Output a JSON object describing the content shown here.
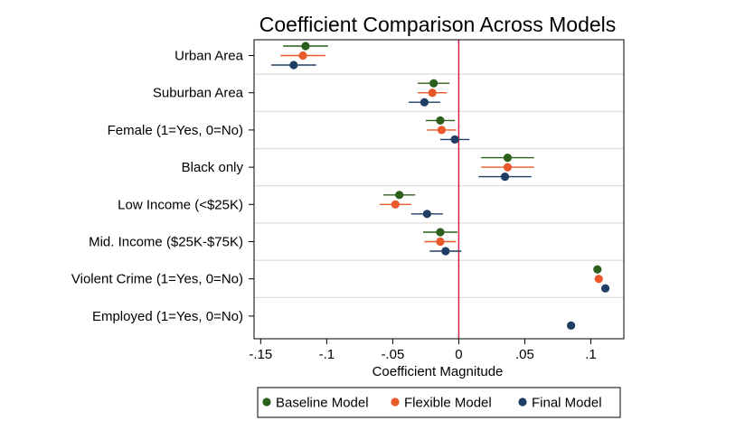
{
  "chart_data": {
    "type": "scatter",
    "title": "Coefficient Comparison Across Models",
    "xlabel": "Coefficient Magnitude",
    "ylabel": "",
    "xlim": [
      -0.155,
      0.125
    ],
    "xticks": [
      {
        "value": -0.15,
        "label": "-.15"
      },
      {
        "value": -0.1,
        "label": "-.1"
      },
      {
        "value": -0.05,
        "label": "-.05"
      },
      {
        "value": 0,
        "label": "0"
      },
      {
        "value": 0.05,
        "label": ".05"
      },
      {
        "value": 0.1,
        "label": ".1"
      }
    ],
    "reference_line": {
      "x": 0,
      "color": "#d6204b"
    },
    "grid": true,
    "legend_position": "bottom",
    "categories": [
      "Urban Area",
      "Suburban Area",
      "Female (1=Yes, 0=No)",
      "Black only",
      "Low Income (<$25K)",
      "Mid. Income ($25K-$75K)",
      "Violent Crime (1=Yes, 0=No)",
      "Employed (1=Yes, 0=No)"
    ],
    "series": [
      {
        "name": "Baseline Model",
        "color": "#2c5f1b",
        "values": [
          -0.116,
          -0.019,
          -0.014,
          0.037,
          -0.045,
          -0.014,
          0.105,
          null
        ],
        "ci_low": [
          -0.133,
          -0.031,
          -0.025,
          0.017,
          -0.057,
          -0.027,
          0.102,
          null
        ],
        "ci_high": [
          -0.099,
          -0.007,
          -0.003,
          0.057,
          -0.033,
          -0.001,
          0.108,
          null
        ]
      },
      {
        "name": "Flexible Model",
        "color": "#e8582a",
        "values": [
          -0.118,
          -0.02,
          -0.013,
          0.037,
          -0.048,
          -0.014,
          0.106,
          null
        ],
        "ci_low": [
          -0.135,
          -0.031,
          -0.024,
          0.017,
          -0.06,
          -0.026,
          0.103,
          null
        ],
        "ci_high": [
          -0.101,
          -0.009,
          -0.002,
          0.057,
          -0.036,
          -0.002,
          0.109,
          null
        ]
      },
      {
        "name": "Final Model",
        "color": "#1f3e63",
        "values": [
          -0.125,
          -0.026,
          -0.003,
          0.035,
          -0.024,
          -0.01,
          0.111,
          0.085
        ],
        "ci_low": [
          -0.142,
          -0.038,
          -0.014,
          0.015,
          -0.036,
          -0.022,
          0.108,
          0.082
        ],
        "ci_high": [
          -0.108,
          -0.014,
          0.008,
          0.055,
          -0.012,
          0.002,
          0.114,
          0.088
        ]
      }
    ]
  }
}
